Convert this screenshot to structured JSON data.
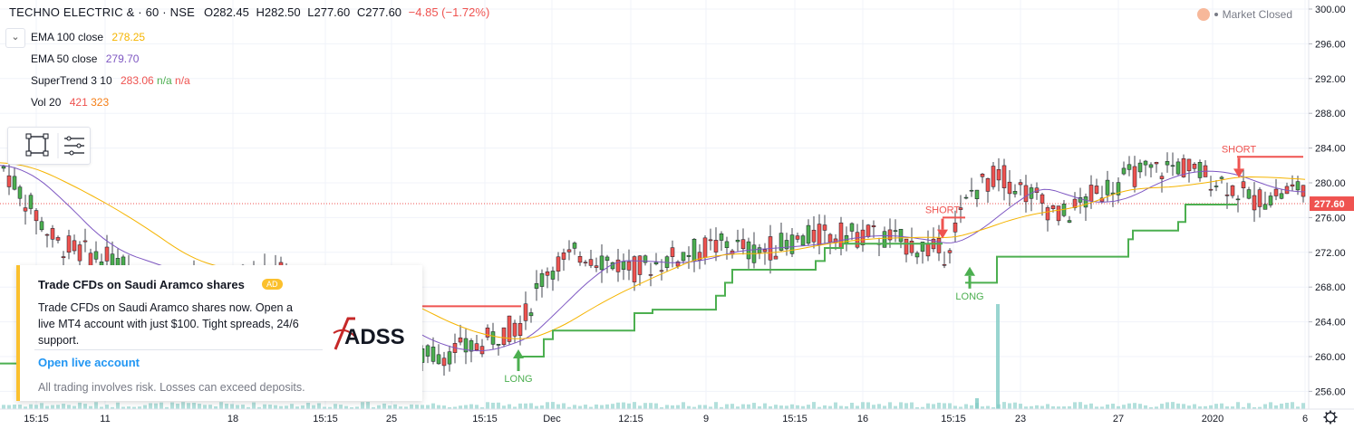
{
  "header": {
    "symbol": "TECHNO ELECTRIC & · 60 · NSE",
    "open": "O282.45",
    "high": "H282.50",
    "low": "L277.60",
    "close": "C277.60",
    "change": "−4.85 (−1.72%)",
    "market_status": "Market Closed"
  },
  "indicators": [
    {
      "name": "EMA 100 close",
      "value": "278.25",
      "color": "#f5b400"
    },
    {
      "name": "EMA 50 close",
      "value": "279.70",
      "color": "#7e57c2"
    },
    {
      "name": "SuperTrend 3 10",
      "value": "283.06",
      "value2": "n/a",
      "value3": "n/a",
      "color": "#ef5350",
      "color2": "#4caf50",
      "color3": "#ef5350"
    },
    {
      "name": "Vol 20",
      "value": "421",
      "value2": "323",
      "color": "#ef5350",
      "color2": "#f57f17"
    }
  ],
  "price_axis": {
    "ticks": [
      "300.00",
      "296.00",
      "292.00",
      "288.00",
      "284.00",
      "280.00",
      "276.00",
      "272.00",
      "268.00",
      "264.00",
      "260.00",
      "256.00"
    ],
    "last_price": "277.60"
  },
  "time_axis": {
    "ticks": [
      "15:15",
      "11",
      "18",
      "15:15",
      "25",
      "15:15",
      "Dec",
      "12:15",
      "9",
      "15:15",
      "16",
      "15:15",
      "23",
      "27",
      "2020",
      "6"
    ]
  },
  "signals": [
    {
      "label": "LONG",
      "color": "#4caf50"
    },
    {
      "label": "SHORT",
      "color": "#ef5350"
    },
    {
      "label": "LONG",
      "color": "#4caf50"
    },
    {
      "label": "SHORT",
      "color": "#ef5350"
    }
  ],
  "ad": {
    "title": "Trade CFDs on Saudi Aramco shares",
    "badge": "AD",
    "body": "Trade CFDs on Saudi Aramco shares now. Open a live MT4 account with just $100. Tight spreads, 24/6 support.",
    "link": "Open live account",
    "risk": "All trading involves risk. Losses can exceed deposits.",
    "logo_text": "ADSS"
  },
  "colors": {
    "up": "#4caf50",
    "down": "#ef5350",
    "supertrend_up": "#4caf50",
    "supertrend_down": "#ef5350",
    "ema50": "#7e57c2",
    "ema100": "#f5b400",
    "volume": "#80cbc4",
    "grid": "#f0f3fa",
    "last_price": "#ef5350"
  }
}
